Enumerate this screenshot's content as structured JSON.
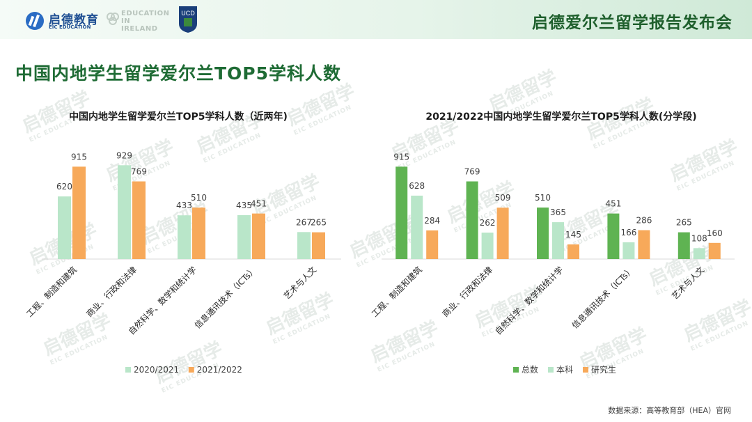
{
  "header": {
    "logo_cn": "启德教育",
    "logo_en": "EIC EDUCATION",
    "partner_logo_text": "EDUCATION IN IRELAND",
    "ucd_logo_text": "UCD",
    "title": "启德爱尔兰留学报告发布会"
  },
  "page_title": "中国内地学生留学爱尔兰TOP5学科人数",
  "watermark": {
    "cn": "启德留学",
    "en": "EIC EDUCATION"
  },
  "colors": {
    "light_green": "#b9e6c9",
    "orange": "#f7a95a",
    "dark_green": "#5fb352",
    "title_green": "#1e6b34",
    "header_title_green": "#1e5f2c"
  },
  "chart_data": [
    {
      "type": "bar",
      "title": "中国内地学生留学爱尔兰TOP5学科人数（近两年)",
      "categories": [
        "工程、制造和建筑",
        "商业、行政和法律",
        "自然科学、数学和统计学",
        "信息通讯技术（ICTs）",
        "艺术与人文"
      ],
      "series": [
        {
          "name": "2020/2021",
          "values": [
            620,
            929,
            433,
            435,
            267
          ],
          "color": "#b9e6c9"
        },
        {
          "name": "2021/2022",
          "values": [
            915,
            769,
            510,
            451,
            265
          ],
          "color": "#f7a95a"
        }
      ],
      "ylim": [
        0,
        1000
      ],
      "legend_position": "bottom",
      "grid": false
    },
    {
      "type": "bar",
      "title": "2021/2022中国内地学生留学爱尔兰TOP5学科人数(分学段)",
      "categories": [
        "工程、制造和建筑",
        "商业、行政和法律",
        "自然科学、数学和统计学",
        "信息通讯技术（ICTs）",
        "艺术与人文"
      ],
      "series": [
        {
          "name": "总数",
          "values": [
            915,
            769,
            510,
            451,
            265
          ],
          "color": "#5fb352"
        },
        {
          "name": "本科",
          "values": [
            628,
            262,
            365,
            166,
            108
          ],
          "color": "#b9e6c9"
        },
        {
          "name": "研究生",
          "values": [
            284,
            509,
            145,
            286,
            160
          ],
          "color": "#f7a95a"
        }
      ],
      "ylim": [
        0,
        1000
      ],
      "legend_position": "bottom",
      "grid": false
    }
  ],
  "source_note": "数据来源：高等教育部（HEA）官网"
}
